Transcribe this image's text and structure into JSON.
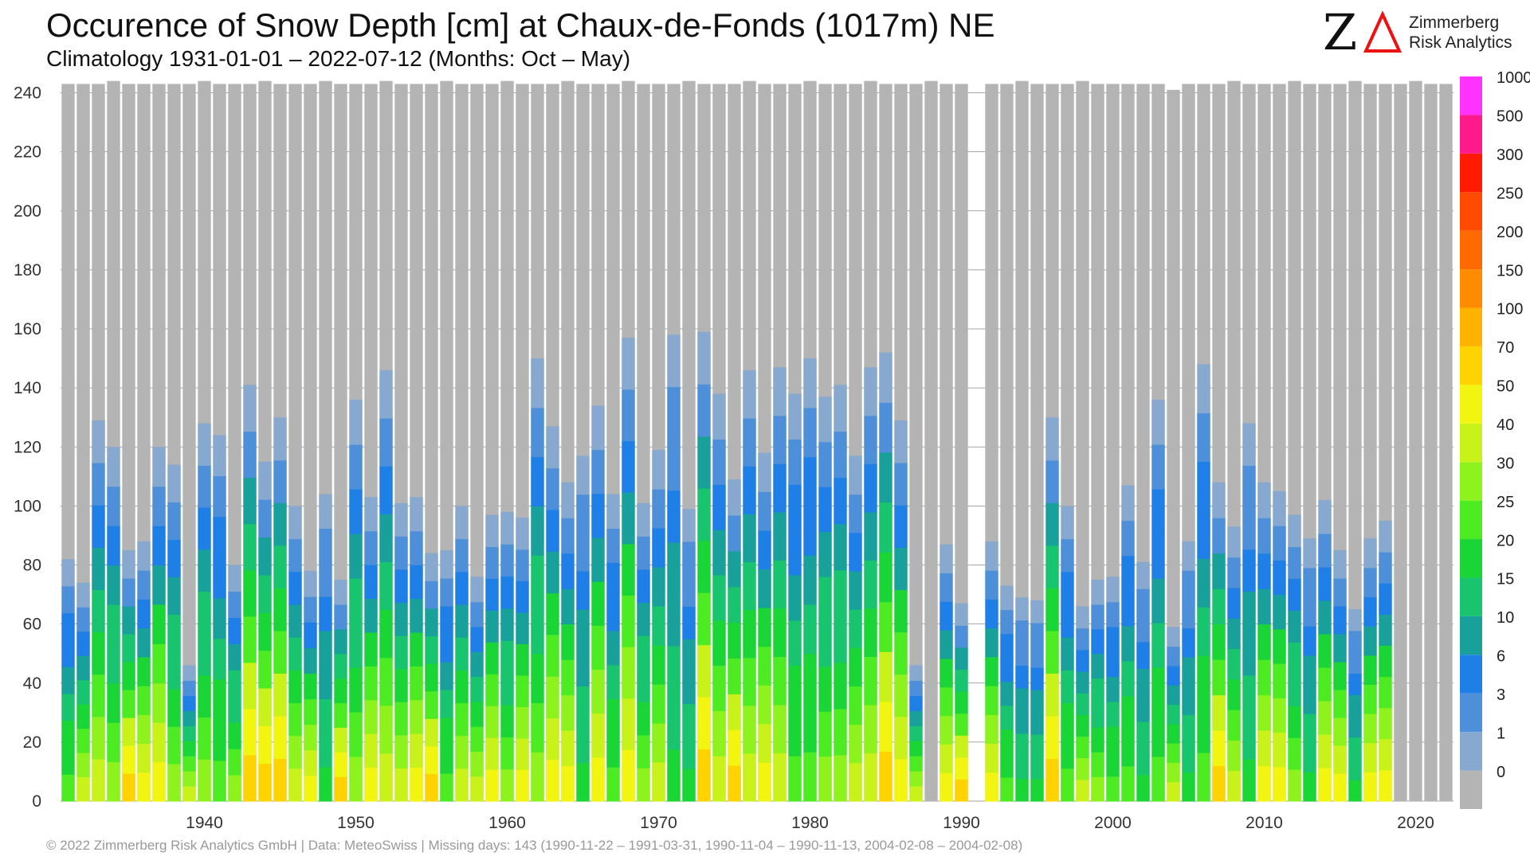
{
  "header": {
    "title": "Occurence of Snow Depth [cm] at Chaux-de-Fonds (1017m) NE",
    "subtitle": "Climatology 1931-01-01 – 2022-07-12 (Months: Oct – May)"
  },
  "logo": {
    "mark": "Z",
    "name_line1": "Zimmerberg",
    "name_line2": "Risk Analytics"
  },
  "footer": {
    "text": "©  2022 Zimmerberg Risk Analytics GmbH | Data: MeteoSwiss | Missing days: 143 (1990-11-22 – 1991-03-31, 1990-11-04 – 1990-11-13, 2004-02-08 – 2004-02-08)"
  },
  "colors": {
    "no_snow": "#b4b4b4",
    "gridline": "#888888"
  },
  "chart_data": {
    "type": "bar",
    "stacked": true,
    "x_unit": "season start year",
    "y_unit": "days",
    "ylim": [
      0,
      245
    ],
    "yticks": [
      0,
      20,
      40,
      60,
      80,
      100,
      120,
      140,
      160,
      180,
      200,
      220,
      240
    ],
    "xticks": [
      1940,
      1950,
      1960,
      1970,
      1980,
      1990,
      2000,
      2010,
      2020
    ],
    "xlim": [
      1931,
      2022
    ],
    "grid": "horizontal",
    "legend_position": "right",
    "legend": {
      "labels": [
        "0",
        "1",
        "3",
        "6",
        "10",
        "15",
        "20",
        "25",
        "30",
        "40",
        "50",
        "70",
        "100",
        "150",
        "200",
        "250",
        "300",
        "500",
        "1000"
      ],
      "colors": [
        "#b4b4b4",
        "#87a9cf",
        "#4d8fd8",
        "#1e7fe6",
        "#18a09a",
        "#19c46e",
        "#19d636",
        "#4ceb22",
        "#8ef21d",
        "#c9f21a",
        "#f2f50f",
        "#ffd300",
        "#ffb300",
        "#ff8c00",
        "#ff6a00",
        "#ff4a00",
        "#ff1a00",
        "#ff1a8c",
        "#ff33ff"
      ]
    },
    "years": [
      1931,
      1932,
      1933,
      1934,
      1935,
      1936,
      1937,
      1938,
      1939,
      1940,
      1941,
      1942,
      1943,
      1944,
      1945,
      1946,
      1947,
      1948,
      1949,
      1950,
      1951,
      1952,
      1953,
      1954,
      1955,
      1956,
      1957,
      1958,
      1959,
      1960,
      1961,
      1962,
      1963,
      1964,
      1965,
      1966,
      1967,
      1968,
      1969,
      1970,
      1971,
      1972,
      1973,
      1974,
      1975,
      1976,
      1977,
      1978,
      1979,
      1980,
      1981,
      1982,
      1983,
      1984,
      1985,
      1986,
      1987,
      1988,
      1989,
      1990,
      1991,
      1992,
      1993,
      1994,
      1995,
      1996,
      1997,
      1998,
      1999,
      2000,
      2001,
      2002,
      2003,
      2004,
      2005,
      2006,
      2007,
      2008,
      2009,
      2010,
      2011,
      2012,
      2013,
      2014,
      2015,
      2016,
      2017,
      2018,
      2019,
      2020,
      2021,
      2022
    ],
    "total_days": [
      243,
      243,
      243,
      244,
      243,
      243,
      243,
      243,
      243,
      244,
      243,
      243,
      243,
      244,
      243,
      243,
      243,
      244,
      243,
      243,
      243,
      244,
      243,
      243,
      243,
      244,
      243,
      243,
      243,
      244,
      243,
      243,
      243,
      244,
      243,
      243,
      243,
      244,
      243,
      243,
      243,
      244,
      243,
      243,
      243,
      244,
      243,
      243,
      243,
      244,
      243,
      243,
      243,
      244,
      243,
      243,
      243,
      244,
      243,
      243,
      0,
      243,
      243,
      244,
      243,
      243,
      243,
      244,
      243,
      243,
      243,
      243,
      243,
      241,
      243,
      243,
      243,
      244,
      243,
      243,
      243,
      244,
      243,
      243,
      243,
      244,
      243,
      243,
      243,
      244,
      243,
      243
    ],
    "snow_days": [
      82,
      74,
      129,
      120,
      85,
      88,
      120,
      114,
      46,
      128,
      124,
      80,
      141,
      115,
      130,
      100,
      78,
      104,
      75,
      136,
      103,
      146,
      101,
      103,
      84,
      85,
      100,
      76,
      97,
      98,
      96,
      150,
      127,
      108,
      117,
      134,
      104,
      157,
      101,
      119,
      158,
      99,
      159,
      138,
      109,
      146,
      118,
      147,
      138,
      150,
      137,
      141,
      117,
      147,
      152,
      129,
      46,
      0,
      87,
      67,
      83,
      88,
      73,
      69,
      68,
      130,
      100,
      66,
      75,
      76,
      107,
      81,
      136,
      59,
      88,
      148,
      108,
      93,
      128,
      108,
      105,
      97,
      89,
      102,
      85,
      65,
      89,
      95,
      0,
      0,
      0,
      0
    ]
  }
}
